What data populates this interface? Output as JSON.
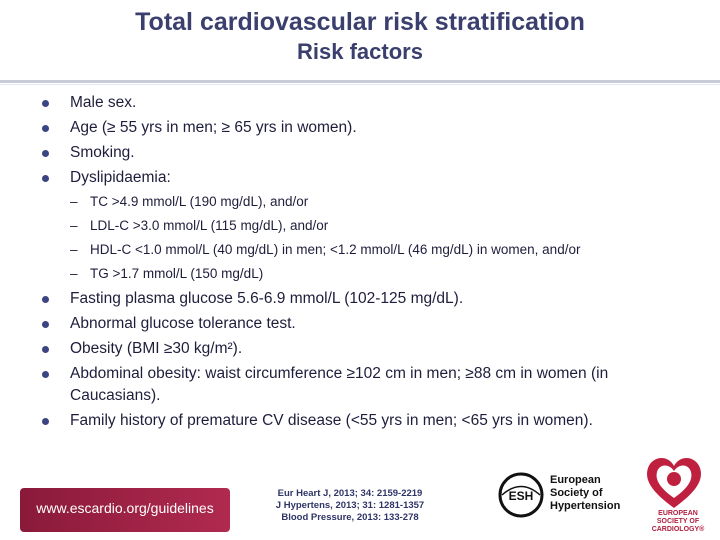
{
  "header": {
    "title": "Total cardiovascular risk stratification",
    "subtitle": "Risk factors"
  },
  "items": [
    {
      "text": "Male sex."
    },
    {
      "text": "Age (≥ 55 yrs in men; ≥ 65 yrs in women)."
    },
    {
      "text": "Smoking."
    },
    {
      "text": "Dyslipidaemia:"
    }
  ],
  "sub_items": [
    {
      "dash": "–",
      "text": "TC >4.9 mmol/L (190 mg/dL), and/or"
    },
    {
      "dash": "–",
      "text": "LDL-C >3.0 mmol/L (115 mg/dL), and/or"
    },
    {
      "dash": "–",
      "text": "HDL-C <1.0 mmol/L (40 mg/dL) in men; <1.2 mmol/L (46 mg/dL) in women, and/or"
    },
    {
      "dash": "–",
      "text": "TG >1.7 mmol/L (150 mg/dL)"
    }
  ],
  "items_after": [
    {
      "text": "Fasting plasma glucose 5.6-6.9 mmol/L (102-125 mg/dL)."
    },
    {
      "text": "Abnormal glucose tolerance test."
    },
    {
      "text": "Obesity (BMI ≥30 kg/m²)."
    },
    {
      "text": "Abdominal obesity: waist circumference ≥102 cm in men; ≥88 cm in women (in Caucasians)."
    },
    {
      "text": "Family history of premature CV disease (<55 yrs in men; <65 yrs in women)."
    }
  ],
  "footer": {
    "url": "www.escardio.org/guidelines",
    "refs": [
      "Eur Heart J, 2013; 34: 2159-2219",
      "J Hypertens, 2013; 31: 1281-1357",
      "Blood Pressure, 2013: 133-278"
    ],
    "esh_abbrev": "ESH",
    "esh_lines": [
      "European",
      "Society of",
      "Hypertension"
    ],
    "esc_lines": [
      "EUROPEAN",
      "SOCIETY OF",
      "CARDIOLOGY®"
    ]
  },
  "colors": {
    "title": "#3a3f6e",
    "bullet": "#3b4582",
    "footer_band": "#8a1a3a",
    "esc_red": "#c0203f"
  }
}
